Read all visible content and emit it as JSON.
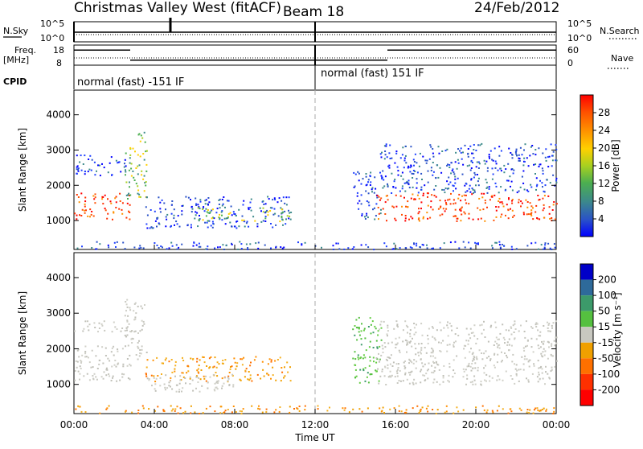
{
  "header": {
    "station": "Christmas Valley West (fitACF)",
    "beam": "Beam 18",
    "date": "24/Feb/2012"
  },
  "top_panels": {
    "nsky_label": "N.Sky",
    "nsearch_label": "N.Search",
    "nsky_ticks": [
      "10^5",
      "10^0"
    ],
    "nsearch_ticks": [
      "10^5",
      "10^0"
    ],
    "freq_label": [
      "Freq.",
      "[MHz]"
    ],
    "freq_ticks": [
      "18",
      "8"
    ],
    "nave_label": "Nave",
    "nave_ticks": [
      "60",
      "0"
    ],
    "cpid_label": "CPID",
    "cpid_modes": [
      {
        "start_hour": 0,
        "end_hour": 12,
        "label": "normal (fast) -151 IF"
      },
      {
        "start_hour": 12,
        "end_hour": 24,
        "label": "normal (fast) 151 IF"
      }
    ],
    "freq_segments": [
      {
        "start_hour": 0,
        "end_hour": 2.8,
        "freq_mhz": 15.5
      },
      {
        "start_hour": 2.8,
        "end_hour": 12,
        "freq_mhz": 10.5
      },
      {
        "start_hour": 12,
        "end_hour": 15.6,
        "freq_mhz": 10.5
      },
      {
        "start_hour": 15.6,
        "end_hour": 24,
        "freq_mhz": 15.5
      }
    ]
  },
  "chart_data": [
    {
      "type": "heatmap",
      "name": "power",
      "ylabel": "Slant Range [km]",
      "xlabel": "Time UT",
      "x_ticks": [
        "00:00",
        "04:00",
        "08:00",
        "12:00",
        "16:00",
        "20:00",
        "00:00"
      ],
      "xlim_hours": [
        0,
        24
      ],
      "y_ticks": [
        1000,
        2000,
        3000,
        4000
      ],
      "ylim_km": [
        180,
        4700
      ],
      "colorbar": {
        "label": "Power [dB]",
        "ticks": [
          4,
          8,
          12,
          16,
          20,
          24,
          28
        ],
        "range": [
          0,
          32
        ],
        "colors": [
          "#0000ff",
          "#2a52c8",
          "#3c8a8a",
          "#4caf50",
          "#a8d020",
          "#ffd000",
          "#ff9000",
          "#ff5000",
          "#ff0000"
        ]
      },
      "regions": [
        {
          "t0": 0.0,
          "t1": 2.8,
          "r0": 1050,
          "r1": 1800,
          "level": "high"
        },
        {
          "t0": 0.0,
          "t1": 2.6,
          "r0": 2300,
          "r1": 2900,
          "level": "low"
        },
        {
          "t0": 2.5,
          "t1": 3.6,
          "r0": 1600,
          "r1": 3550,
          "level": "mid"
        },
        {
          "t0": 3.5,
          "t1": 10.8,
          "r0": 800,
          "r1": 1700,
          "level": "low"
        },
        {
          "t0": 6.0,
          "t1": 10.8,
          "r0": 1000,
          "r1": 1400,
          "level": "mid"
        },
        {
          "t0": 13.8,
          "t1": 15.3,
          "r0": 1050,
          "r1": 2400,
          "level": "low"
        },
        {
          "t0": 15.0,
          "t1": 24.0,
          "r0": 1000,
          "r1": 1800,
          "level": "high"
        },
        {
          "t0": 15.2,
          "t1": 24.0,
          "r0": 1800,
          "r1": 3200,
          "level": "low"
        },
        {
          "t0": 0.0,
          "t1": 24.0,
          "r0": 200,
          "r1": 420,
          "level": "low"
        }
      ]
    },
    {
      "type": "heatmap",
      "name": "velocity",
      "ylabel": "Slant Range [km]",
      "xlabel": "Time UT",
      "x_ticks": [
        "00:00",
        "04:00",
        "08:00",
        "12:00",
        "16:00",
        "20:00",
        "00:00"
      ],
      "xlim_hours": [
        0,
        24
      ],
      "y_ticks": [
        1000,
        2000,
        3000,
        4000
      ],
      "ylim_km": [
        180,
        4700
      ],
      "colorbar": {
        "label": "Velocity [m s⁻¹]",
        "ticks": [
          200,
          100,
          50,
          15,
          -15,
          -50,
          -100,
          -200
        ],
        "colors": [
          "#0000c8",
          "#2e6a9a",
          "#3c9a6a",
          "#55c040",
          "#c8c8c0",
          "#f0a000",
          "#ff7000",
          "#ff3000",
          "#ff0000"
        ]
      },
      "regions": [
        {
          "t0": 0.0,
          "t1": 2.8,
          "r0": 1100,
          "r1": 2100,
          "level": "grey"
        },
        {
          "t0": 0.0,
          "t1": 2.8,
          "r0": 2500,
          "r1": 2800,
          "level": "grey"
        },
        {
          "t0": 2.5,
          "t1": 3.6,
          "r0": 1700,
          "r1": 3500,
          "level": "grey"
        },
        {
          "t0": 3.5,
          "t1": 10.8,
          "r0": 1100,
          "r1": 1800,
          "level": "orange"
        },
        {
          "t0": 3.5,
          "t1": 8.0,
          "r0": 800,
          "r1": 1300,
          "level": "grey"
        },
        {
          "t0": 13.8,
          "t1": 15.3,
          "r0": 1050,
          "r1": 2900,
          "level": "green"
        },
        {
          "t0": 15.0,
          "t1": 24.0,
          "r0": 1000,
          "r1": 2800,
          "level": "grey"
        },
        {
          "t0": 0.0,
          "t1": 24.0,
          "r0": 200,
          "r1": 420,
          "level": "orange"
        }
      ]
    }
  ]
}
